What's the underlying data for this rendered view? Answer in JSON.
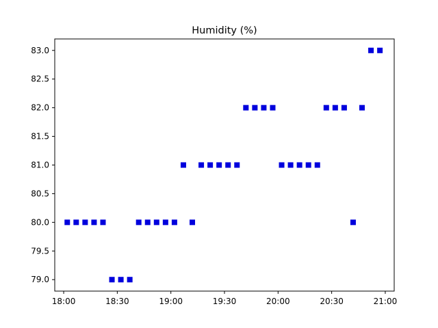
{
  "chart_data": {
    "type": "scatter",
    "title": "Humidity (%)",
    "xlabel": "",
    "ylabel": "",
    "marker": "square",
    "color": "#0000dd",
    "grid": false,
    "legend": false,
    "xlim": [
      "17:55",
      "21:05"
    ],
    "ylim": [
      78.8,
      83.2
    ],
    "x_ticks": [
      "18:00",
      "18:30",
      "19:00",
      "19:30",
      "20:00",
      "20:30",
      "21:00"
    ],
    "y_ticks": [
      "79.0",
      "79.5",
      "80.0",
      "80.5",
      "81.0",
      "81.5",
      "82.0",
      "82.5",
      "83.0"
    ],
    "series": [
      {
        "points": [
          {
            "x": "18:02",
            "y": 80.0
          },
          {
            "x": "18:07",
            "y": 80.0
          },
          {
            "x": "18:12",
            "y": 80.0
          },
          {
            "x": "18:17",
            "y": 80.0
          },
          {
            "x": "18:22",
            "y": 80.0
          },
          {
            "x": "18:27",
            "y": 79.0
          },
          {
            "x": "18:32",
            "y": 79.0
          },
          {
            "x": "18:37",
            "y": 79.0
          },
          {
            "x": "18:42",
            "y": 80.0
          },
          {
            "x": "18:47",
            "y": 80.0
          },
          {
            "x": "18:52",
            "y": 80.0
          },
          {
            "x": "18:57",
            "y": 80.0
          },
          {
            "x": "19:02",
            "y": 80.0
          },
          {
            "x": "19:07",
            "y": 81.0
          },
          {
            "x": "19:12",
            "y": 80.0
          },
          {
            "x": "19:17",
            "y": 81.0
          },
          {
            "x": "19:22",
            "y": 81.0
          },
          {
            "x": "19:27",
            "y": 81.0
          },
          {
            "x": "19:32",
            "y": 81.0
          },
          {
            "x": "19:37",
            "y": 81.0
          },
          {
            "x": "19:42",
            "y": 82.0
          },
          {
            "x": "19:47",
            "y": 82.0
          },
          {
            "x": "19:52",
            "y": 82.0
          },
          {
            "x": "19:57",
            "y": 82.0
          },
          {
            "x": "20:02",
            "y": 81.0
          },
          {
            "x": "20:07",
            "y": 81.0
          },
          {
            "x": "20:12",
            "y": 81.0
          },
          {
            "x": "20:17",
            "y": 81.0
          },
          {
            "x": "20:22",
            "y": 81.0
          },
          {
            "x": "20:27",
            "y": 82.0
          },
          {
            "x": "20:32",
            "y": 82.0
          },
          {
            "x": "20:37",
            "y": 82.0
          },
          {
            "x": "20:42",
            "y": 80.0
          },
          {
            "x": "20:47",
            "y": 82.0
          },
          {
            "x": "20:52",
            "y": 83.0
          },
          {
            "x": "20:57",
            "y": 83.0
          }
        ]
      }
    ]
  }
}
